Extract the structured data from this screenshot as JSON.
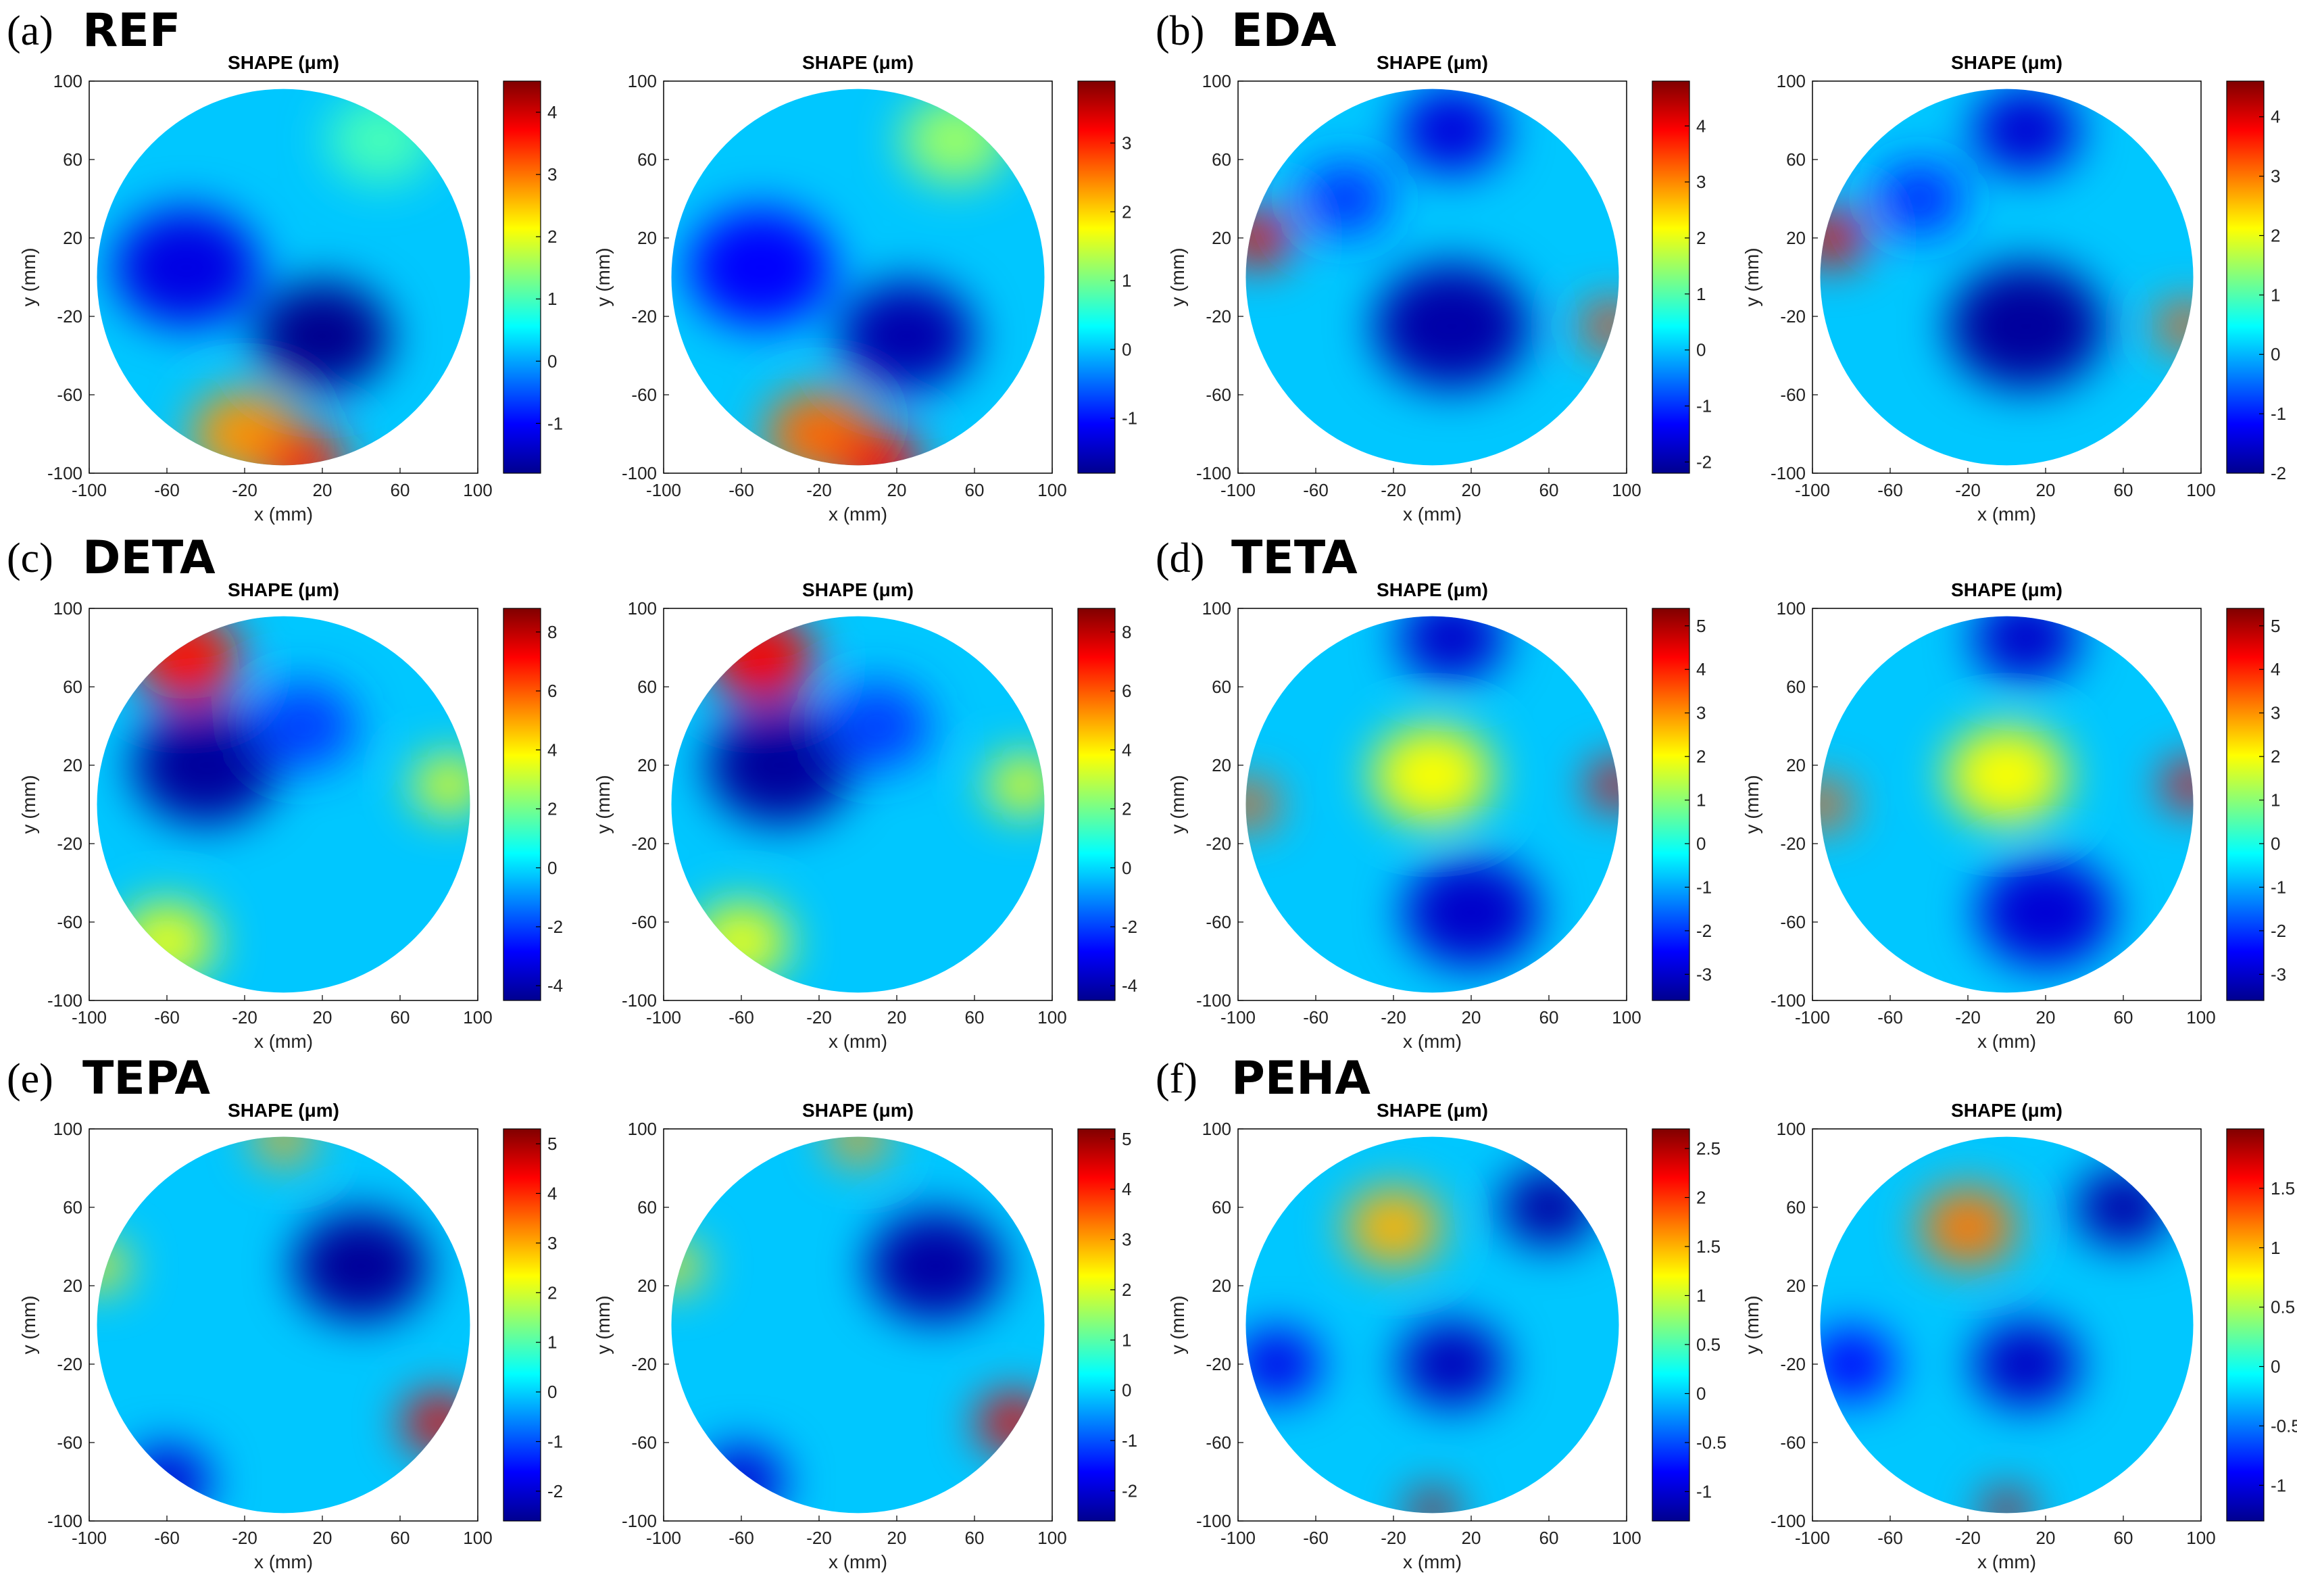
{
  "figure": {
    "panels": [
      {
        "letter": "(a)",
        "name": "REF"
      },
      {
        "letter": "(b)",
        "name": "EDA"
      },
      {
        "letter": "(c)",
        "name": "DETA"
      },
      {
        "letter": "(d)",
        "name": "TETA"
      },
      {
        "letter": "(e)",
        "name": "TEPA"
      },
      {
        "letter": "(f)",
        "name": "PEHA"
      }
    ]
  },
  "colors": {
    "jet": [
      "#00008f",
      "#0000ff",
      "#0080ff",
      "#00ffff",
      "#80ff80",
      "#ffff00",
      "#ff8000",
      "#ff0000",
      "#800000"
    ],
    "frame": "#000000",
    "background": "#ffffff"
  },
  "chart_data": [
    {
      "type": "heatmap",
      "panel": "(a)",
      "sample": "REF",
      "replicate": 1,
      "title": "SHAPE (μm)",
      "xlabel": "x (mm)",
      "ylabel": "y (mm)",
      "xlim": [
        -100,
        100
      ],
      "ylim": [
        -100,
        100
      ],
      "xticks": [
        -100,
        -60,
        -20,
        20,
        60,
        100
      ],
      "yticks": [
        100,
        60,
        20,
        -20,
        -60,
        -100
      ],
      "clim": [
        -1.8,
        4.5
      ],
      "colorbar_ticks": [
        -1,
        0,
        1,
        2,
        3,
        4
      ],
      "colorbar_labels": [
        "-1",
        "0",
        "1",
        "2",
        "3",
        "4"
      ],
      "features": [
        {
          "x": -50,
          "y": 5,
          "v": -1.2,
          "w": 30
        },
        {
          "x": 20,
          "y": -30,
          "v": -1.8,
          "w": 28
        },
        {
          "x": -20,
          "y": -80,
          "v": 2.8,
          "w": 22
        },
        {
          "x": 10,
          "y": -95,
          "v": 3.5,
          "w": 18
        },
        {
          "x": 50,
          "y": 70,
          "v": 1.0,
          "w": 22
        }
      ]
    },
    {
      "type": "heatmap",
      "panel": "(a)",
      "sample": "REF",
      "replicate": 2,
      "title": "SHAPE (μm)",
      "xlabel": "x (mm)",
      "ylabel": "y (mm)",
      "xlim": [
        -100,
        100
      ],
      "ylim": [
        -100,
        100
      ],
      "xticks": [
        -100,
        -60,
        -20,
        20,
        60,
        100
      ],
      "yticks": [
        100,
        60,
        20,
        -20,
        -60,
        -100
      ],
      "clim": [
        -1.8,
        3.9
      ],
      "colorbar_ticks": [
        -1,
        0,
        1,
        2,
        3
      ],
      "colorbar_labels": [
        "-1",
        "0",
        "1",
        "2",
        "3"
      ],
      "features": [
        {
          "x": -50,
          "y": 5,
          "v": -1.1,
          "w": 30
        },
        {
          "x": 25,
          "y": -30,
          "v": -1.6,
          "w": 28
        },
        {
          "x": -20,
          "y": -80,
          "v": 2.6,
          "w": 22
        },
        {
          "x": 10,
          "y": -95,
          "v": 3.2,
          "w": 18
        },
        {
          "x": 50,
          "y": 70,
          "v": 1.2,
          "w": 22
        }
      ]
    },
    {
      "type": "heatmap",
      "panel": "(b)",
      "sample": "EDA",
      "replicate": 1,
      "title": "SHAPE (μm)",
      "xlabel": "x (mm)",
      "ylabel": "y (mm)",
      "xlim": [
        -100,
        100
      ],
      "ylim": [
        -100,
        100
      ],
      "xticks": [
        -100,
        -60,
        -20,
        20,
        60,
        100
      ],
      "yticks": [
        100,
        60,
        20,
        -20,
        -60,
        -100
      ],
      "clim": [
        -2.2,
        4.8
      ],
      "colorbar_ticks": [
        -2,
        -1,
        0,
        1,
        2,
        3,
        4
      ],
      "colorbar_labels": [
        "-2",
        "-1",
        "0",
        "1",
        "2",
        "3",
        "4"
      ],
      "features": [
        {
          "x": 10,
          "y": -25,
          "v": -2.0,
          "w": 32
        },
        {
          "x": 10,
          "y": 75,
          "v": -1.6,
          "w": 22
        },
        {
          "x": -90,
          "y": 20,
          "v": 4.0,
          "w": 14
        },
        {
          "x": 92,
          "y": -25,
          "v": 3.5,
          "w": 12
        },
        {
          "x": -45,
          "y": 40,
          "v": -1.0,
          "w": 18
        }
      ]
    },
    {
      "type": "heatmap",
      "panel": "(b)",
      "sample": "EDA",
      "replicate": 2,
      "title": "SHAPE (μm)",
      "xlabel": "x (mm)",
      "ylabel": "y (mm)",
      "xlim": [
        -100,
        100
      ],
      "ylim": [
        -100,
        100
      ],
      "xticks": [
        -100,
        -60,
        -20,
        20,
        60,
        100
      ],
      "yticks": [
        100,
        60,
        20,
        -20,
        -60,
        -100
      ],
      "clim": [
        -2.0,
        4.6
      ],
      "colorbar_ticks": [
        -2,
        -1,
        0,
        1,
        2,
        3,
        4
      ],
      "colorbar_labels": [
        "-2",
        "-1",
        "0",
        "1",
        "2",
        "3",
        "4"
      ],
      "features": [
        {
          "x": 10,
          "y": -25,
          "v": -1.9,
          "w": 32
        },
        {
          "x": 10,
          "y": 75,
          "v": -1.5,
          "w": 22
        },
        {
          "x": -90,
          "y": 20,
          "v": 3.9,
          "w": 14
        },
        {
          "x": 92,
          "y": -25,
          "v": 3.2,
          "w": 12
        },
        {
          "x": -45,
          "y": 40,
          "v": -0.9,
          "w": 18
        }
      ]
    },
    {
      "type": "heatmap",
      "panel": "(c)",
      "sample": "DETA",
      "replicate": 1,
      "title": "SHAPE (μm)",
      "xlabel": "x (mm)",
      "ylabel": "y (mm)",
      "xlim": [
        -100,
        100
      ],
      "ylim": [
        -100,
        100
      ],
      "xticks": [
        -100,
        -60,
        -20,
        20,
        60,
        100
      ],
      "yticks": [
        100,
        60,
        20,
        -20,
        -60,
        -100
      ],
      "clim": [
        -4.5,
        8.8
      ],
      "colorbar_ticks": [
        -4,
        -2,
        0,
        2,
        4,
        6,
        8
      ],
      "colorbar_labels": [
        "-4",
        "-2",
        "0",
        "2",
        "4",
        "6",
        "8"
      ],
      "features": [
        {
          "x": -40,
          "y": 20,
          "v": -4.3,
          "w": 30
        },
        {
          "x": -50,
          "y": 75,
          "v": 7.0,
          "w": 22
        },
        {
          "x": 85,
          "y": 10,
          "v": 3.5,
          "w": 15
        },
        {
          "x": -60,
          "y": -70,
          "v": 3.5,
          "w": 20
        },
        {
          "x": 10,
          "y": 40,
          "v": -2.0,
          "w": 22
        }
      ]
    },
    {
      "type": "heatmap",
      "panel": "(c)",
      "sample": "DETA",
      "replicate": 2,
      "title": "SHAPE (μm)",
      "xlabel": "x (mm)",
      "ylabel": "y (mm)",
      "xlim": [
        -100,
        100
      ],
      "ylim": [
        -100,
        100
      ],
      "xticks": [
        -100,
        -60,
        -20,
        20,
        60,
        100
      ],
      "yticks": [
        100,
        60,
        20,
        -20,
        -60,
        -100
      ],
      "clim": [
        -4.5,
        8.8
      ],
      "colorbar_ticks": [
        -4,
        -2,
        0,
        2,
        4,
        6,
        8
      ],
      "colorbar_labels": [
        "-4",
        "-2",
        "0",
        "2",
        "4",
        "6",
        "8"
      ],
      "features": [
        {
          "x": -40,
          "y": 20,
          "v": -4.3,
          "w": 30
        },
        {
          "x": -50,
          "y": 75,
          "v": 7.2,
          "w": 22
        },
        {
          "x": 85,
          "y": 10,
          "v": 3.5,
          "w": 15
        },
        {
          "x": -60,
          "y": -70,
          "v": 3.5,
          "w": 20
        },
        {
          "x": 10,
          "y": 40,
          "v": -2.0,
          "w": 22
        }
      ]
    },
    {
      "type": "heatmap",
      "panel": "(d)",
      "sample": "TETA",
      "replicate": 1,
      "title": "SHAPE (μm)",
      "xlabel": "x (mm)",
      "ylabel": "y (mm)",
      "xlim": [
        -100,
        100
      ],
      "ylim": [
        -100,
        100
      ],
      "xticks": [
        -100,
        -60,
        -20,
        20,
        60,
        100
      ],
      "yticks": [
        100,
        60,
        20,
        -20,
        -60,
        -100
      ],
      "clim": [
        -3.6,
        5.4
      ],
      "colorbar_ticks": [
        -3,
        -2,
        -1,
        0,
        1,
        2,
        3,
        4,
        5
      ],
      "colorbar_labels": [
        "-3",
        "-2",
        "-1",
        "0",
        "1",
        "2",
        "3",
        "4",
        "5"
      ],
      "features": [
        {
          "x": 10,
          "y": 85,
          "v": -3.0,
          "w": 22
        },
        {
          "x": 20,
          "y": -55,
          "v": -3.0,
          "w": 28
        },
        {
          "x": -95,
          "y": 0,
          "v": 3.5,
          "w": 12
        },
        {
          "x": 95,
          "y": 10,
          "v": 4.5,
          "w": 12
        },
        {
          "x": 0,
          "y": 15,
          "v": 2.0,
          "w": 25
        }
      ]
    },
    {
      "type": "heatmap",
      "panel": "(d)",
      "sample": "TETA",
      "replicate": 2,
      "title": "SHAPE (μm)",
      "xlabel": "x (mm)",
      "ylabel": "y (mm)",
      "xlim": [
        -100,
        100
      ],
      "ylim": [
        -100,
        100
      ],
      "xticks": [
        -100,
        -60,
        -20,
        20,
        60,
        100
      ],
      "yticks": [
        100,
        60,
        20,
        -20,
        -60,
        -100
      ],
      "clim": [
        -3.6,
        5.4
      ],
      "colorbar_ticks": [
        -3,
        -2,
        -1,
        0,
        1,
        2,
        3,
        4,
        5
      ],
      "colorbar_labels": [
        "-3",
        "-2",
        "-1",
        "0",
        "1",
        "2",
        "3",
        "4",
        "5"
      ],
      "features": [
        {
          "x": 10,
          "y": 85,
          "v": -3.0,
          "w": 22
        },
        {
          "x": 20,
          "y": -55,
          "v": -2.9,
          "w": 28
        },
        {
          "x": -95,
          "y": 0,
          "v": 3.5,
          "w": 12
        },
        {
          "x": 95,
          "y": 10,
          "v": 4.4,
          "w": 12
        },
        {
          "x": 0,
          "y": 15,
          "v": 2.0,
          "w": 25
        }
      ]
    },
    {
      "type": "heatmap",
      "panel": "(e)",
      "sample": "TEPA",
      "replicate": 1,
      "title": "SHAPE (μm)",
      "xlabel": "x (mm)",
      "ylabel": "y (mm)",
      "xlim": [
        -100,
        100
      ],
      "ylim": [
        -100,
        100
      ],
      "xticks": [
        -100,
        -60,
        -20,
        20,
        60,
        100
      ],
      "yticks": [
        100,
        60,
        20,
        -20,
        -60,
        -100
      ],
      "clim": [
        -2.6,
        5.3
      ],
      "colorbar_ticks": [
        -2,
        -1,
        0,
        1,
        2,
        3,
        4,
        5
      ],
      "colorbar_labels": [
        "-2",
        "-1",
        "0",
        "1",
        "2",
        "3",
        "4",
        "5"
      ],
      "features": [
        {
          "x": 40,
          "y": 30,
          "v": -2.5,
          "w": 28
        },
        {
          "x": -60,
          "y": -80,
          "v": -2.0,
          "w": 18
        },
        {
          "x": 80,
          "y": -50,
          "v": 4.5,
          "w": 15
        },
        {
          "x": -95,
          "y": 30,
          "v": 2.5,
          "w": 12
        },
        {
          "x": 0,
          "y": 95,
          "v": 3.0,
          "w": 12
        }
      ]
    },
    {
      "type": "heatmap",
      "panel": "(e)",
      "sample": "TEPA",
      "replicate": 2,
      "title": "SHAPE (μm)",
      "xlabel": "x (mm)",
      "ylabel": "y (mm)",
      "xlim": [
        -100,
        100
      ],
      "ylim": [
        -100,
        100
      ],
      "xticks": [
        -100,
        -60,
        -20,
        20,
        60,
        100
      ],
      "yticks": [
        100,
        60,
        20,
        -20,
        -60,
        -100
      ],
      "clim": [
        -2.6,
        5.2
      ],
      "colorbar_ticks": [
        -2,
        -1,
        0,
        1,
        2,
        3,
        4,
        5
      ],
      "colorbar_labels": [
        "-2",
        "-1",
        "0",
        "1",
        "2",
        "3",
        "4",
        "5"
      ],
      "features": [
        {
          "x": 40,
          "y": 30,
          "v": -2.4,
          "w": 28
        },
        {
          "x": -60,
          "y": -80,
          "v": -2.0,
          "w": 18
        },
        {
          "x": 80,
          "y": -50,
          "v": 4.4,
          "w": 15
        },
        {
          "x": -95,
          "y": 30,
          "v": 2.5,
          "w": 12
        },
        {
          "x": 0,
          "y": 95,
          "v": 3.0,
          "w": 12
        }
      ]
    },
    {
      "type": "heatmap",
      "panel": "(f)",
      "sample": "PEHA",
      "replicate": 1,
      "title": "SHAPE (μm)",
      "xlabel": "x (mm)",
      "ylabel": "y (mm)",
      "xlim": [
        -100,
        100
      ],
      "ylim": [
        -100,
        100
      ],
      "xticks": [
        -100,
        -60,
        -20,
        20,
        60,
        100
      ],
      "yticks": [
        100,
        60,
        20,
        -20,
        -60,
        -100
      ],
      "clim": [
        -1.3,
        2.7
      ],
      "colorbar_ticks": [
        -1,
        -0.5,
        0,
        0.5,
        1,
        1.5,
        2,
        2.5
      ],
      "colorbar_labels": [
        "-1",
        "-0.5",
        "0",
        "0.5",
        "1",
        "1.5",
        "2",
        "2.5"
      ],
      "features": [
        {
          "x": 60,
          "y": 60,
          "v": -1.2,
          "w": 20
        },
        {
          "x": 10,
          "y": -20,
          "v": -1.1,
          "w": 22
        },
        {
          "x": -80,
          "y": -20,
          "v": -0.9,
          "w": 18
        },
        {
          "x": -20,
          "y": 50,
          "v": 1.5,
          "w": 20
        },
        {
          "x": 0,
          "y": -95,
          "v": 2.5,
          "w": 10
        }
      ]
    },
    {
      "type": "heatmap",
      "panel": "(f)",
      "sample": "PEHA",
      "replicate": 2,
      "title": "SHAPE (μm)",
      "xlabel": "x (mm)",
      "ylabel": "y (mm)",
      "xlim": [
        -100,
        100
      ],
      "ylim": [
        -100,
        100
      ],
      "xticks": [
        -100,
        -60,
        -20,
        20,
        60,
        100
      ],
      "yticks": [
        100,
        60,
        20,
        -20,
        -60,
        -100
      ],
      "clim": [
        -1.3,
        2.0
      ],
      "colorbar_ticks": [
        -1,
        -0.5,
        0,
        0.5,
        1,
        1.5
      ],
      "colorbar_labels": [
        "-1",
        "-0.5",
        "0",
        "0.5",
        "1",
        "1.5"
      ],
      "features": [
        {
          "x": 60,
          "y": 60,
          "v": -1.2,
          "w": 20
        },
        {
          "x": 10,
          "y": -20,
          "v": -1.1,
          "w": 22
        },
        {
          "x": -80,
          "y": -20,
          "v": -0.9,
          "w": 18
        },
        {
          "x": -20,
          "y": 50,
          "v": 1.2,
          "w": 20
        },
        {
          "x": 0,
          "y": -95,
          "v": 1.8,
          "w": 10
        }
      ]
    }
  ]
}
